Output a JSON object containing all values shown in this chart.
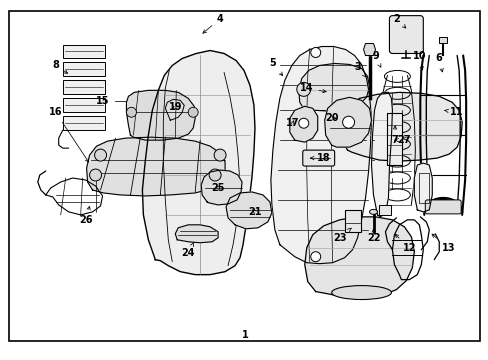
{
  "bg_color": "#ffffff",
  "border_color": "#000000",
  "fig_width": 4.89,
  "fig_height": 3.6,
  "dpi": 100,
  "label_fs": 7.0,
  "lw_thin": 0.5,
  "lw_med": 0.8,
  "lw_thick": 1.2
}
